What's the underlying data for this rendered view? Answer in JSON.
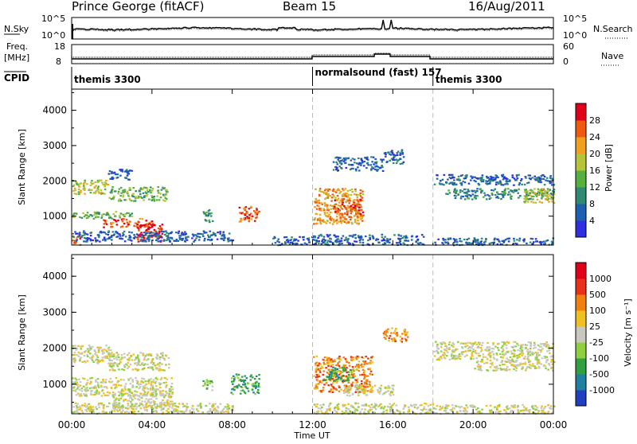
{
  "header": {
    "station": "Prince George (fitACF)",
    "beam": "Beam 15",
    "date": "16/Aug/2011"
  },
  "noise_panel": {
    "left_label": "N.Sky",
    "right_label": "N.Search",
    "left_ticks": [
      "10^5",
      "10^0"
    ],
    "right_ticks": [
      "10^5",
      "10^0"
    ]
  },
  "freq_panel": {
    "left_label_1": "Freq.",
    "left_label_2": "[MHz]",
    "right_label": "Nave",
    "left_ticks": [
      "18",
      "8"
    ],
    "right_ticks": [
      "60",
      "0"
    ]
  },
  "cpid": {
    "label": "CPID",
    "segments": [
      {
        "name": "themis 3300",
        "start_hour": 0
      },
      {
        "name": "normalsound (fast) 157",
        "start_hour": 12
      },
      {
        "name": "themis 3300",
        "start_hour": 18
      }
    ]
  },
  "x_axis": {
    "label": "Time UT",
    "ticks": [
      "00:00",
      "04:00",
      "08:00",
      "12:00",
      "16:00",
      "20:00",
      "00:00"
    ]
  },
  "chart_data": [
    {
      "type": "heatmap",
      "quantity": "Power",
      "xlabel": "Time UT",
      "ylabel": "Slant Range [km]",
      "xlim": [
        0,
        24
      ],
      "ylim": [
        180,
        4600
      ],
      "yticks": [
        "1000",
        "2000",
        "3000",
        "4000"
      ],
      "colorbar_label": "Power [dB]",
      "colorbar_ticks": [
        "4",
        "8",
        "12",
        "16",
        "20",
        "24",
        "28"
      ],
      "colorscale": [
        "#2f2fe0",
        "#1e5fb0",
        "#2e8a70",
        "#55b040",
        "#b6c43a",
        "#f0a020",
        "#f05a10",
        "#e0001a"
      ],
      "echo_regions": [
        {
          "t": [
            0.0,
            1.8
          ],
          "r": [
            1650,
            2050
          ],
          "level": 4
        },
        {
          "t": [
            1.8,
            4.8
          ],
          "r": [
            1450,
            1850
          ],
          "level": 3
        },
        {
          "t": [
            1.8,
            3.0
          ],
          "r": [
            2050,
            2350
          ],
          "level": 1
        },
        {
          "t": [
            0.0,
            3.0
          ],
          "r": [
            950,
            1150
          ],
          "level": 3
        },
        {
          "t": [
            1.5,
            4.0
          ],
          "r": [
            700,
            950
          ],
          "level": 6
        },
        {
          "t": [
            3.2,
            4.5
          ],
          "r": [
            300,
            800
          ],
          "level": 7
        },
        {
          "t": [
            0.0,
            0.4
          ],
          "r": [
            200,
            500
          ],
          "level": 6
        },
        {
          "t": [
            0.0,
            8.0
          ],
          "r": [
            300,
            600
          ],
          "level": 1
        },
        {
          "t": [
            8.3,
            9.3
          ],
          "r": [
            850,
            1300
          ],
          "level": 6
        },
        {
          "t": [
            6.5,
            7.0
          ],
          "r": [
            850,
            1200
          ],
          "level": 2
        },
        {
          "t": [
            10.0,
            12.0
          ],
          "r": [
            200,
            450
          ],
          "level": 1
        },
        {
          "t": [
            12.0,
            14.5
          ],
          "r": [
            800,
            1800
          ],
          "level": 5
        },
        {
          "t": [
            13.0,
            14.5
          ],
          "r": [
            1000,
            1500
          ],
          "level": 6
        },
        {
          "t": [
            12.0,
            17.5
          ],
          "r": [
            200,
            500
          ],
          "level": 1
        },
        {
          "t": [
            13.0,
            15.5
          ],
          "r": [
            2300,
            2700
          ],
          "level": 1
        },
        {
          "t": [
            15.5,
            16.5
          ],
          "r": [
            2500,
            2900
          ],
          "level": 1
        },
        {
          "t": [
            18.0,
            24.0
          ],
          "r": [
            1900,
            2200
          ],
          "level": 1
        },
        {
          "t": [
            18.5,
            24.0
          ],
          "r": [
            1500,
            1800
          ],
          "level": 2
        },
        {
          "t": [
            22.5,
            24.0
          ],
          "r": [
            1400,
            1800
          ],
          "level": 4
        },
        {
          "t": [
            18.0,
            24.0
          ],
          "r": [
            200,
            400
          ],
          "level": 1
        }
      ]
    },
    {
      "type": "heatmap",
      "quantity": "Velocity",
      "xlabel": "Time UT",
      "ylabel": "Slant Range [km]",
      "xlim": [
        0,
        24
      ],
      "ylim": [
        180,
        4600
      ],
      "yticks": [
        "1000",
        "2000",
        "3000",
        "4000"
      ],
      "colorbar_label": "Velocity [m s⁻¹]",
      "colorbar_ticks": [
        "1000",
        "500",
        "100",
        "25",
        "-25",
        "-100",
        "-500",
        "-1000"
      ],
      "colorscale": [
        "#2040c0",
        "#2080a0",
        "#30a040",
        "#90d040",
        "#c8c8c0",
        "#f0c020",
        "#f08010",
        "#e8301a",
        "#e0001a"
      ],
      "echo_regions": [
        {
          "t": [
            0.0,
            2.0
          ],
          "r": [
            1600,
            2100
          ],
          "level": 4
        },
        {
          "t": [
            1.8,
            4.8
          ],
          "r": [
            1400,
            1900
          ],
          "level": 4
        },
        {
          "t": [
            0.0,
            5.0
          ],
          "r": [
            700,
            1200
          ],
          "level": 4
        },
        {
          "t": [
            2.0,
            5.0
          ],
          "r": [
            350,
            800
          ],
          "level": 4
        },
        {
          "t": [
            0.0,
            8.0
          ],
          "r": [
            200,
            500
          ],
          "level": 4
        },
        {
          "t": [
            7.9,
            9.3
          ],
          "r": [
            750,
            1300
          ],
          "level": 2
        },
        {
          "t": [
            6.5,
            7.0
          ],
          "r": [
            850,
            1200
          ],
          "level": 3
        },
        {
          "t": [
            12.0,
            15.0
          ],
          "r": [
            800,
            1800
          ],
          "level": 6
        },
        {
          "t": [
            12.5,
            14.0
          ],
          "r": [
            1100,
            1500
          ],
          "level": 2
        },
        {
          "t": [
            15.5,
            16.7
          ],
          "r": [
            2200,
            2600
          ],
          "level": 6
        },
        {
          "t": [
            13.5,
            16.0
          ],
          "r": [
            700,
            1000
          ],
          "level": 4
        },
        {
          "t": [
            12.0,
            18.0
          ],
          "r": [
            200,
            500
          ],
          "level": 4
        },
        {
          "t": [
            18.0,
            24.0
          ],
          "r": [
            1700,
            2200
          ],
          "level": 4
        },
        {
          "t": [
            20.0,
            24.0
          ],
          "r": [
            1400,
            1700
          ],
          "level": 4
        },
        {
          "t": [
            18.0,
            24.0
          ],
          "r": [
            200,
            450
          ],
          "level": 4
        }
      ]
    }
  ]
}
